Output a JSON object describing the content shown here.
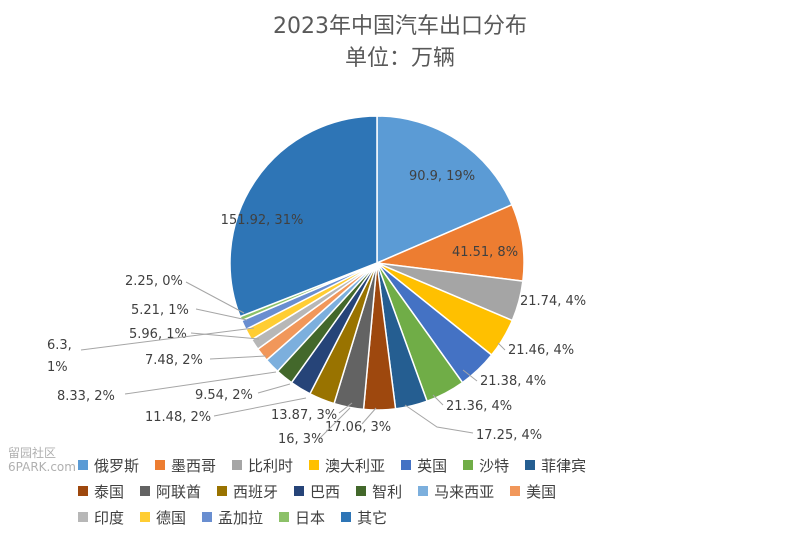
{
  "watermark": {
    "line1": "留园社区",
    "line2": "6PARK.com"
  },
  "chart_data": {
    "type": "pie",
    "title": "2023年中国汽车出口分布",
    "subtitle": "单位：万辆",
    "legend_position": "bottom",
    "slices": [
      {
        "name": "俄罗斯",
        "value": 90.9,
        "label": "90.9, 19%",
        "color": "#5b9bd5"
      },
      {
        "name": "墨西哥",
        "value": 41.51,
        "label": "41.51, 8%",
        "color": "#ed7d31"
      },
      {
        "name": "比利时",
        "value": 21.74,
        "label": "21.74, 4%",
        "color": "#a5a5a5"
      },
      {
        "name": "澳大利亚",
        "value": 21.46,
        "label": "21.46, 4%",
        "color": "#ffc000"
      },
      {
        "name": "英国",
        "value": 21.38,
        "label": "21.38, 4%",
        "color": "#4472c4"
      },
      {
        "name": "沙特",
        "value": 21.36,
        "label": "21.36, 4%",
        "color": "#70ad47"
      },
      {
        "name": "菲律宾",
        "value": 17.25,
        "label": "17.25, 4%",
        "color": "#255e91"
      },
      {
        "name": "泰国",
        "value": 17.06,
        "label": "17.06, 3%",
        "color": "#9e480e"
      },
      {
        "name": "阿联酋",
        "value": 16,
        "label": "16, 3%",
        "color": "#636363"
      },
      {
        "name": "西班牙",
        "value": 13.87,
        "label": "13.87, 3%",
        "color": "#997300"
      },
      {
        "name": "巴西",
        "value": 11.48,
        "label": "11.48, 2%",
        "color": "#264478"
      },
      {
        "name": "智利",
        "value": 9.54,
        "label": "9.54, 2%",
        "color": "#43682b"
      },
      {
        "name": "马来西亚",
        "value": 8.33,
        "label": "8.33, 2%",
        "color": "#7cafdd"
      },
      {
        "name": "美国",
        "value": 7.48,
        "label": "7.48, 2%",
        "color": "#f1975a"
      },
      {
        "name": "印度",
        "value": 5.96,
        "label": "5.96, 1%",
        "color": "#b7b7b7"
      },
      {
        "name": "德国",
        "value": 6.3,
        "label": "6.3, 1%",
        "color": "#ffcd33"
      },
      {
        "name": "孟加拉",
        "value": 5.21,
        "label": "5.21, 1%",
        "color": "#698ed0"
      },
      {
        "name": "日本",
        "value": 2.25,
        "label": "2.25, 0%",
        "color": "#8cc168"
      },
      {
        "name": "其它",
        "value": 151.92,
        "label": "151.92, 31%",
        "color": "#2e75b6"
      }
    ]
  }
}
